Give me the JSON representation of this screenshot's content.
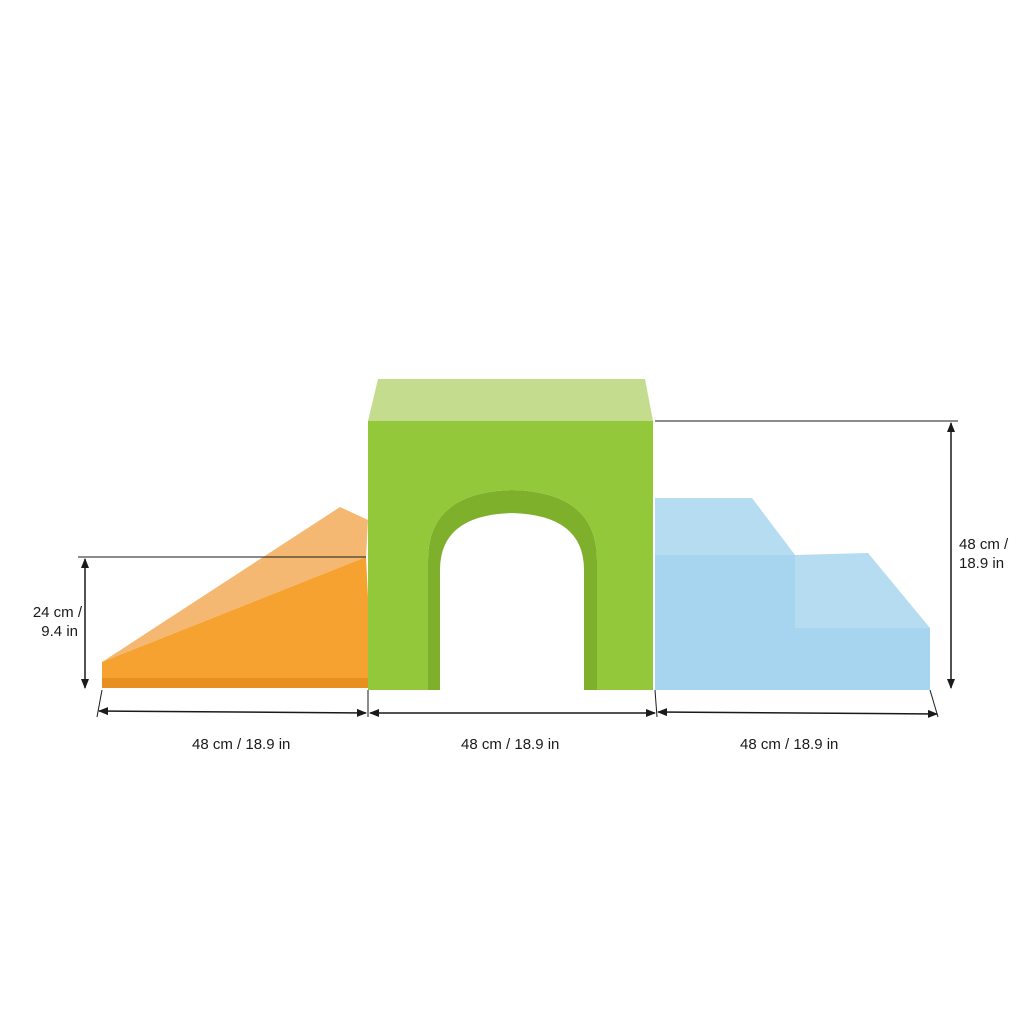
{
  "colors": {
    "orange": "#f6a230",
    "orange_top": "#f5b873",
    "green": "#93c83a",
    "green_top": "#c4dc8e",
    "blue": "#a7d4ee",
    "blue_top": "#b6dcf2",
    "dimension_line": "#1a1a1a"
  },
  "dimensions": {
    "wedge_height": {
      "line1": "24 cm /",
      "line2": "9.4 in"
    },
    "arch_height": {
      "line1": "48 cm /",
      "line2": "18.9 in"
    },
    "wedge_width": "48 cm / 18.9 in",
    "arch_width": "48 cm / 18.9 in",
    "steps_width": "48 cm / 18.9 in"
  },
  "pieces": [
    "wedge-ramp",
    "arch-tunnel",
    "two-step-stairs"
  ]
}
